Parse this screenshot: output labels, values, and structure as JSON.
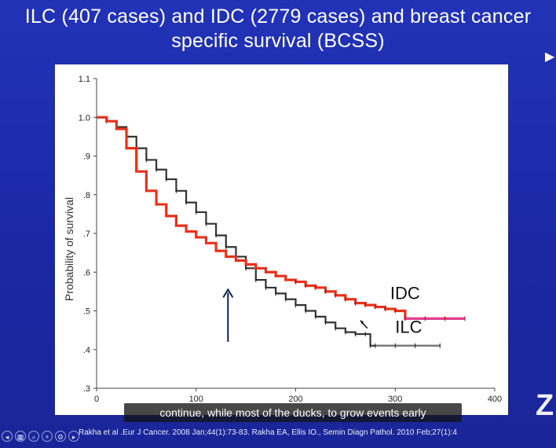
{
  "slide": {
    "title": "ILC (407 cases) and IDC (2779 cases) and breast cancer specific survival (BCSS)",
    "caption": "continue, while most of the ducks, to grow events early",
    "footer": "Rakha et al .Eur J Cancer. 2008 Jan;44(1):73-83. Rakha EA, Ellis IO., Semin Diagn Pathol. 2010 Feb;27(1):4",
    "toolbar_icons": [
      "back-icon",
      "slides-icon",
      "search-icon",
      "zoom-icon",
      "settings-icon",
      "forward-icon"
    ],
    "side_logo": "Z",
    "colors": {
      "background": "#1c2aa8",
      "idc": "#e8311a",
      "ilc": "#333333",
      "idc_tail": "#e0409a",
      "ilc_tail": "#7a7a7a",
      "arrow": "#0b1f4a"
    }
  },
  "chart_data": {
    "type": "line",
    "title": "",
    "xlabel": "",
    "ylabel": "Probability of survival",
    "xlim": [
      0,
      400
    ],
    "ylim": [
      0.3,
      1.1
    ],
    "xticks": [
      0,
      100,
      200,
      300,
      400
    ],
    "xtick_labels": [
      "0",
      "100",
      "200",
      "300",
      "400"
    ],
    "yticks": [
      0.3,
      0.4,
      0.5,
      0.6,
      0.7,
      0.8,
      0.9,
      1.0,
      1.1
    ],
    "ytick_labels": [
      ".3",
      ".4",
      ".5",
      ".6",
      ".7",
      ".8",
      ".9",
      "1.0",
      "1.1"
    ],
    "grid": false,
    "series": [
      {
        "name": "IDC",
        "color": "#e8311a",
        "x": [
          0,
          10,
          20,
          30,
          40,
          50,
          60,
          70,
          80,
          90,
          100,
          110,
          120,
          130,
          140,
          150,
          160,
          170,
          180,
          190,
          200,
          210,
          220,
          230,
          240,
          250,
          260,
          270,
          280,
          290,
          300,
          310,
          330,
          350,
          370
        ],
        "y": [
          1.0,
          0.99,
          0.97,
          0.92,
          0.86,
          0.81,
          0.775,
          0.745,
          0.72,
          0.705,
          0.69,
          0.675,
          0.655,
          0.64,
          0.63,
          0.62,
          0.61,
          0.6,
          0.59,
          0.58,
          0.575,
          0.565,
          0.56,
          0.55,
          0.54,
          0.53,
          0.52,
          0.515,
          0.51,
          0.505,
          0.5,
          0.48,
          0.48,
          0.48,
          0.48
        ]
      },
      {
        "name": "ILC",
        "color": "#333333",
        "x": [
          0,
          10,
          20,
          30,
          40,
          50,
          60,
          70,
          80,
          90,
          100,
          110,
          120,
          130,
          140,
          150,
          160,
          170,
          180,
          190,
          200,
          210,
          220,
          230,
          240,
          250,
          260,
          270,
          275,
          280,
          300,
          320,
          345
        ],
        "y": [
          1.0,
          0.99,
          0.975,
          0.95,
          0.92,
          0.89,
          0.865,
          0.84,
          0.81,
          0.78,
          0.755,
          0.725,
          0.695,
          0.665,
          0.64,
          0.61,
          0.58,
          0.56,
          0.545,
          0.53,
          0.515,
          0.5,
          0.485,
          0.47,
          0.455,
          0.445,
          0.44,
          0.44,
          0.41,
          0.41,
          0.41,
          0.41,
          0.41
        ]
      }
    ],
    "annotations": [
      {
        "text": "IDC",
        "x": 295,
        "y": 0.53
      },
      {
        "text": "ILC",
        "x": 300,
        "y": 0.443
      }
    ],
    "arrow": {
      "x": 132,
      "y_from": 0.42,
      "y_to": 0.555
    },
    "small_arrow": {
      "x_from": 272,
      "y_from": 0.455,
      "x_to": 265,
      "y_to": 0.475
    }
  }
}
